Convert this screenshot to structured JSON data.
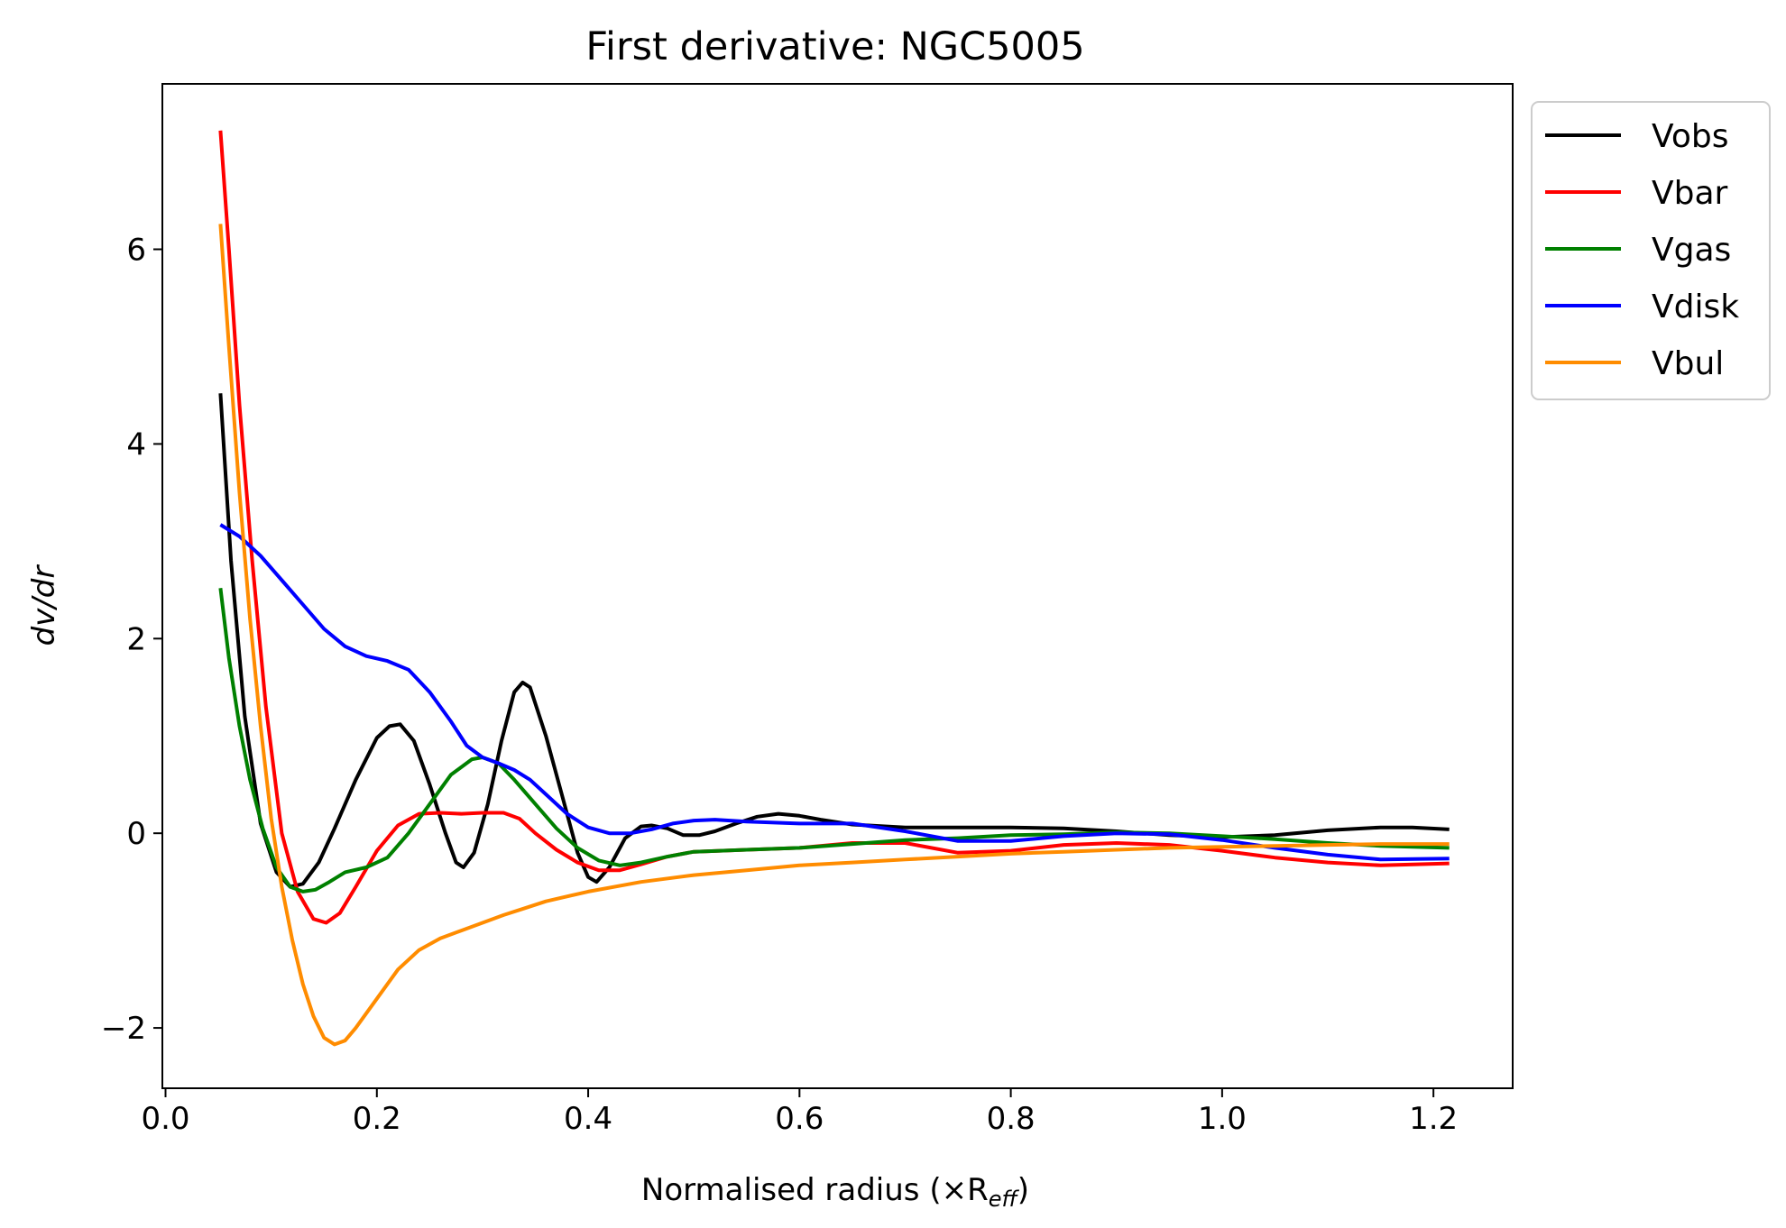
{
  "chart_data": {
    "type": "line",
    "title": "First derivative: NGC5005",
    "xlabel": "Normalised radius (×R",
    "xlabel_sub": "eff",
    "xlabel_end": ")",
    "ylabel": "dv/dr",
    "xlim": [
      -0.003,
      1.275
    ],
    "ylim": [
      -2.62,
      7.7
    ],
    "xticks": [
      0.0,
      0.2,
      0.4,
      0.6,
      0.8,
      1.0,
      1.2
    ],
    "xtick_labels": [
      "0.0",
      "0.2",
      "0.4",
      "0.6",
      "0.8",
      "1.0",
      "1.2"
    ],
    "yticks": [
      -2,
      0,
      2,
      4,
      6
    ],
    "ytick_labels": [
      "−2",
      "0",
      "2",
      "4",
      "6"
    ],
    "grid": false,
    "legend_position": "outside-top-right",
    "series": [
      {
        "name": "Vobs",
        "color": "#000000",
        "points": [
          [
            0.052,
            4.52
          ],
          [
            0.062,
            2.8
          ],
          [
            0.075,
            1.2
          ],
          [
            0.09,
            0.1
          ],
          [
            0.105,
            -0.4
          ],
          [
            0.118,
            -0.55
          ],
          [
            0.13,
            -0.52
          ],
          [
            0.145,
            -0.3
          ],
          [
            0.16,
            0.05
          ],
          [
            0.18,
            0.55
          ],
          [
            0.2,
            0.98
          ],
          [
            0.212,
            1.1
          ],
          [
            0.222,
            1.12
          ],
          [
            0.235,
            0.95
          ],
          [
            0.25,
            0.5
          ],
          [
            0.265,
            0.0
          ],
          [
            0.275,
            -0.3
          ],
          [
            0.282,
            -0.35
          ],
          [
            0.292,
            -0.2
          ],
          [
            0.305,
            0.3
          ],
          [
            0.318,
            0.95
          ],
          [
            0.33,
            1.45
          ],
          [
            0.338,
            1.55
          ],
          [
            0.345,
            1.5
          ],
          [
            0.36,
            1.0
          ],
          [
            0.375,
            0.4
          ],
          [
            0.39,
            -0.2
          ],
          [
            0.4,
            -0.45
          ],
          [
            0.408,
            -0.5
          ],
          [
            0.42,
            -0.35
          ],
          [
            0.435,
            -0.05
          ],
          [
            0.45,
            0.07
          ],
          [
            0.46,
            0.08
          ],
          [
            0.475,
            0.05
          ],
          [
            0.49,
            -0.02
          ],
          [
            0.505,
            -0.02
          ],
          [
            0.52,
            0.02
          ],
          [
            0.54,
            0.1
          ],
          [
            0.56,
            0.17
          ],
          [
            0.58,
            0.2
          ],
          [
            0.6,
            0.18
          ],
          [
            0.62,
            0.14
          ],
          [
            0.65,
            0.09
          ],
          [
            0.7,
            0.06
          ],
          [
            0.8,
            0.06
          ],
          [
            0.85,
            0.05
          ],
          [
            0.9,
            0.02
          ],
          [
            0.95,
            -0.02
          ],
          [
            1.0,
            -0.04
          ],
          [
            1.05,
            -0.02
          ],
          [
            1.1,
            0.03
          ],
          [
            1.15,
            0.06
          ],
          [
            1.18,
            0.06
          ],
          [
            1.215,
            0.04
          ]
        ]
      },
      {
        "name": "Vbar",
        "color": "#ff0000",
        "points": [
          [
            0.052,
            7.22
          ],
          [
            0.06,
            6.0
          ],
          [
            0.07,
            4.4
          ],
          [
            0.082,
            2.8
          ],
          [
            0.095,
            1.3
          ],
          [
            0.11,
            0.0
          ],
          [
            0.125,
            -0.6
          ],
          [
            0.14,
            -0.88
          ],
          [
            0.152,
            -0.92
          ],
          [
            0.165,
            -0.82
          ],
          [
            0.18,
            -0.55
          ],
          [
            0.2,
            -0.18
          ],
          [
            0.22,
            0.08
          ],
          [
            0.24,
            0.2
          ],
          [
            0.26,
            0.21
          ],
          [
            0.28,
            0.2
          ],
          [
            0.3,
            0.21
          ],
          [
            0.32,
            0.21
          ],
          [
            0.335,
            0.15
          ],
          [
            0.35,
            0.0
          ],
          [
            0.37,
            -0.17
          ],
          [
            0.39,
            -0.3
          ],
          [
            0.41,
            -0.38
          ],
          [
            0.43,
            -0.38
          ],
          [
            0.45,
            -0.32
          ],
          [
            0.475,
            -0.24
          ],
          [
            0.5,
            -0.19
          ],
          [
            0.55,
            -0.17
          ],
          [
            0.6,
            -0.15
          ],
          [
            0.65,
            -0.1
          ],
          [
            0.7,
            -0.1
          ],
          [
            0.75,
            -0.2
          ],
          [
            0.8,
            -0.18
          ],
          [
            0.85,
            -0.12
          ],
          [
            0.9,
            -0.1
          ],
          [
            0.95,
            -0.12
          ],
          [
            1.0,
            -0.18
          ],
          [
            1.05,
            -0.25
          ],
          [
            1.1,
            -0.3
          ],
          [
            1.15,
            -0.33
          ],
          [
            1.215,
            -0.31
          ]
        ]
      },
      {
        "name": "Vgas",
        "color": "#008000",
        "points": [
          [
            0.052,
            2.52
          ],
          [
            0.06,
            1.8
          ],
          [
            0.07,
            1.1
          ],
          [
            0.08,
            0.55
          ],
          [
            0.092,
            0.05
          ],
          [
            0.105,
            -0.35
          ],
          [
            0.118,
            -0.55
          ],
          [
            0.13,
            -0.6
          ],
          [
            0.142,
            -0.58
          ],
          [
            0.155,
            -0.5
          ],
          [
            0.17,
            -0.4
          ],
          [
            0.19,
            -0.35
          ],
          [
            0.21,
            -0.25
          ],
          [
            0.23,
            0.0
          ],
          [
            0.25,
            0.3
          ],
          [
            0.27,
            0.6
          ],
          [
            0.29,
            0.76
          ],
          [
            0.3,
            0.78
          ],
          [
            0.315,
            0.72
          ],
          [
            0.33,
            0.55
          ],
          [
            0.35,
            0.3
          ],
          [
            0.37,
            0.05
          ],
          [
            0.39,
            -0.15
          ],
          [
            0.41,
            -0.28
          ],
          [
            0.43,
            -0.33
          ],
          [
            0.45,
            -0.3
          ],
          [
            0.475,
            -0.24
          ],
          [
            0.5,
            -0.19
          ],
          [
            0.55,
            -0.17
          ],
          [
            0.6,
            -0.15
          ],
          [
            0.65,
            -0.11
          ],
          [
            0.7,
            -0.07
          ],
          [
            0.75,
            -0.05
          ],
          [
            0.8,
            -0.02
          ],
          [
            0.85,
            -0.01
          ],
          [
            0.9,
            0.01
          ],
          [
            0.95,
            0.0
          ],
          [
            1.0,
            -0.03
          ],
          [
            1.05,
            -0.06
          ],
          [
            1.1,
            -0.1
          ],
          [
            1.15,
            -0.13
          ],
          [
            1.215,
            -0.15
          ]
        ]
      },
      {
        "name": "Vdisk",
        "color": "#0000ff",
        "points": [
          [
            0.052,
            3.17
          ],
          [
            0.07,
            3.05
          ],
          [
            0.09,
            2.85
          ],
          [
            0.11,
            2.6
          ],
          [
            0.13,
            2.35
          ],
          [
            0.15,
            2.1
          ],
          [
            0.17,
            1.92
          ],
          [
            0.19,
            1.82
          ],
          [
            0.21,
            1.77
          ],
          [
            0.23,
            1.68
          ],
          [
            0.25,
            1.45
          ],
          [
            0.27,
            1.15
          ],
          [
            0.285,
            0.9
          ],
          [
            0.3,
            0.78
          ],
          [
            0.315,
            0.72
          ],
          [
            0.33,
            0.65
          ],
          [
            0.345,
            0.55
          ],
          [
            0.36,
            0.4
          ],
          [
            0.38,
            0.2
          ],
          [
            0.4,
            0.06
          ],
          [
            0.42,
            0.0
          ],
          [
            0.44,
            0.0
          ],
          [
            0.46,
            0.04
          ],
          [
            0.48,
            0.1
          ],
          [
            0.5,
            0.13
          ],
          [
            0.52,
            0.14
          ],
          [
            0.55,
            0.12
          ],
          [
            0.6,
            0.1
          ],
          [
            0.65,
            0.1
          ],
          [
            0.7,
            0.02
          ],
          [
            0.75,
            -0.08
          ],
          [
            0.8,
            -0.08
          ],
          [
            0.85,
            -0.03
          ],
          [
            0.9,
            0.0
          ],
          [
            0.95,
            -0.01
          ],
          [
            1.0,
            -0.07
          ],
          [
            1.05,
            -0.15
          ],
          [
            1.1,
            -0.22
          ],
          [
            1.15,
            -0.27
          ],
          [
            1.215,
            -0.26
          ]
        ]
      },
      {
        "name": "Vbul",
        "color": "#ff8c00",
        "points": [
          [
            0.052,
            6.26
          ],
          [
            0.06,
            5.0
          ],
          [
            0.07,
            3.5
          ],
          [
            0.08,
            2.2
          ],
          [
            0.09,
            1.1
          ],
          [
            0.1,
            0.15
          ],
          [
            0.11,
            -0.55
          ],
          [
            0.12,
            -1.1
          ],
          [
            0.13,
            -1.55
          ],
          [
            0.14,
            -1.88
          ],
          [
            0.15,
            -2.1
          ],
          [
            0.16,
            -2.17
          ],
          [
            0.17,
            -2.13
          ],
          [
            0.18,
            -2.0
          ],
          [
            0.2,
            -1.7
          ],
          [
            0.22,
            -1.4
          ],
          [
            0.24,
            -1.2
          ],
          [
            0.26,
            -1.08
          ],
          [
            0.28,
            -1.0
          ],
          [
            0.3,
            -0.92
          ],
          [
            0.32,
            -0.84
          ],
          [
            0.34,
            -0.77
          ],
          [
            0.36,
            -0.7
          ],
          [
            0.4,
            -0.6
          ],
          [
            0.45,
            -0.5
          ],
          [
            0.5,
            -0.43
          ],
          [
            0.55,
            -0.38
          ],
          [
            0.6,
            -0.33
          ],
          [
            0.65,
            -0.3
          ],
          [
            0.7,
            -0.27
          ],
          [
            0.75,
            -0.24
          ],
          [
            0.8,
            -0.21
          ],
          [
            0.85,
            -0.19
          ],
          [
            0.9,
            -0.17
          ],
          [
            0.95,
            -0.15
          ],
          [
            1.0,
            -0.14
          ],
          [
            1.05,
            -0.13
          ],
          [
            1.1,
            -0.12
          ],
          [
            1.15,
            -0.11
          ],
          [
            1.215,
            -0.11
          ]
        ]
      }
    ]
  }
}
